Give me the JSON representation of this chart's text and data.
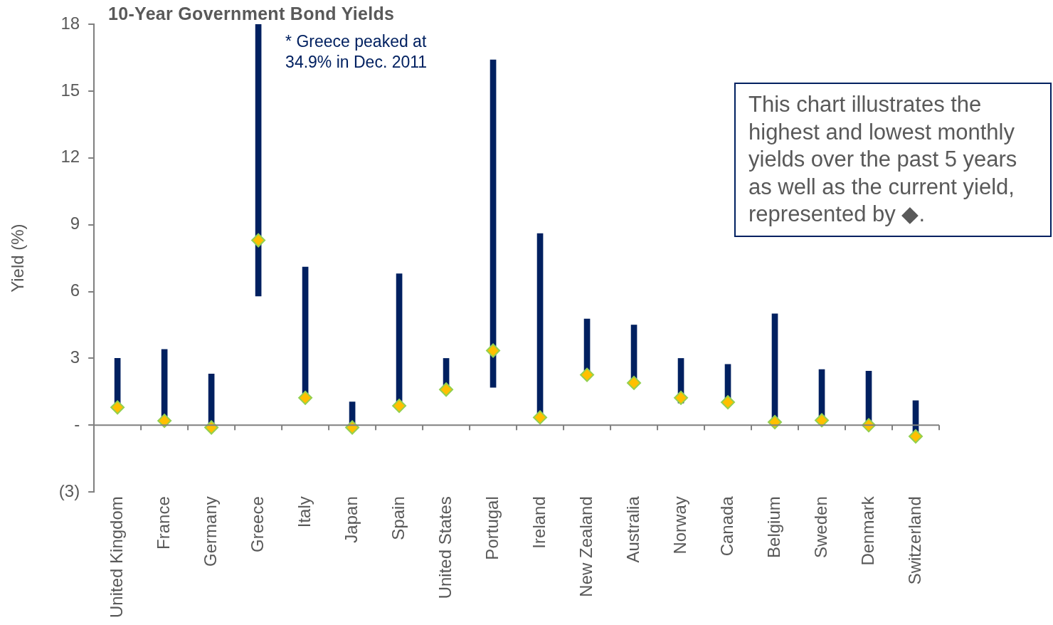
{
  "chart_data": {
    "type": "bar",
    "title": "10-Year Government Bond Yields",
    "ylabel": "Yield (%)",
    "categories": [
      "United Kingdom",
      "France",
      "Germany",
      "Greece",
      "Italy",
      "Japan",
      "Spain",
      "United States",
      "Portugal",
      "Ireland",
      "New Zealand",
      "Australia",
      "Norway",
      "Canada",
      "Belgium",
      "Sweden",
      "Denmark",
      "Switzerland"
    ],
    "series": [
      {
        "color": "#002060",
        "base": [
          0.75,
          0.2,
          -0.1,
          5.8,
          1.2,
          -0.1,
          0.85,
          1.5,
          1.7,
          0.35,
          2.2,
          1.9,
          1.0,
          1.0,
          0.14,
          0.2,
          0.0,
          -0.5
        ],
        "values": [
          2.25,
          3.2,
          2.4,
          29.1,
          5.9,
          1.15,
          5.95,
          1.5,
          14.7,
          8.25,
          2.57,
          2.6,
          2.0,
          1.73,
          4.86,
          2.3,
          2.43,
          1.6
        ]
      },
      {
        "type": "scatter",
        "color": "#ffc000",
        "marker": "diamond",
        "x": [
          "United Kingdom",
          "France",
          "Germany",
          "Greece",
          "Italy",
          "Japan",
          "Spain",
          "United States",
          "Portugal",
          "Ireland",
          "New Zealand",
          "Australia",
          "Norway",
          "Canada",
          "Belgium",
          "Sweden",
          "Denmark",
          "Switzerland"
        ],
        "values": [
          0.8,
          0.2,
          -0.1,
          8.3,
          1.23,
          -0.1,
          0.87,
          1.6,
          3.35,
          0.35,
          2.26,
          1.9,
          1.23,
          1.03,
          0.14,
          0.22,
          0.0,
          -0.5
        ]
      }
    ],
    "ylim": [
      -3,
      18
    ],
    "yticks": [
      {
        "value": -3,
        "label": "(3)"
      },
      {
        "value": 0,
        "label": "-"
      },
      3,
      6,
      9,
      12,
      15,
      18
    ],
    "ref_lines": [
      {
        "axis": "y",
        "value": 0,
        "color": "#808080"
      }
    ],
    "annotations": [
      {
        "text": "* Greece peaked at 34.9% in Dec. 2011",
        "x": "Greece",
        "y": 18
      },
      "This chart illustrates the highest and lowest monthly yields over the past 5 years as well as the current yield, represented by ◆."
    ],
    "grid": false,
    "legend": false
  }
}
